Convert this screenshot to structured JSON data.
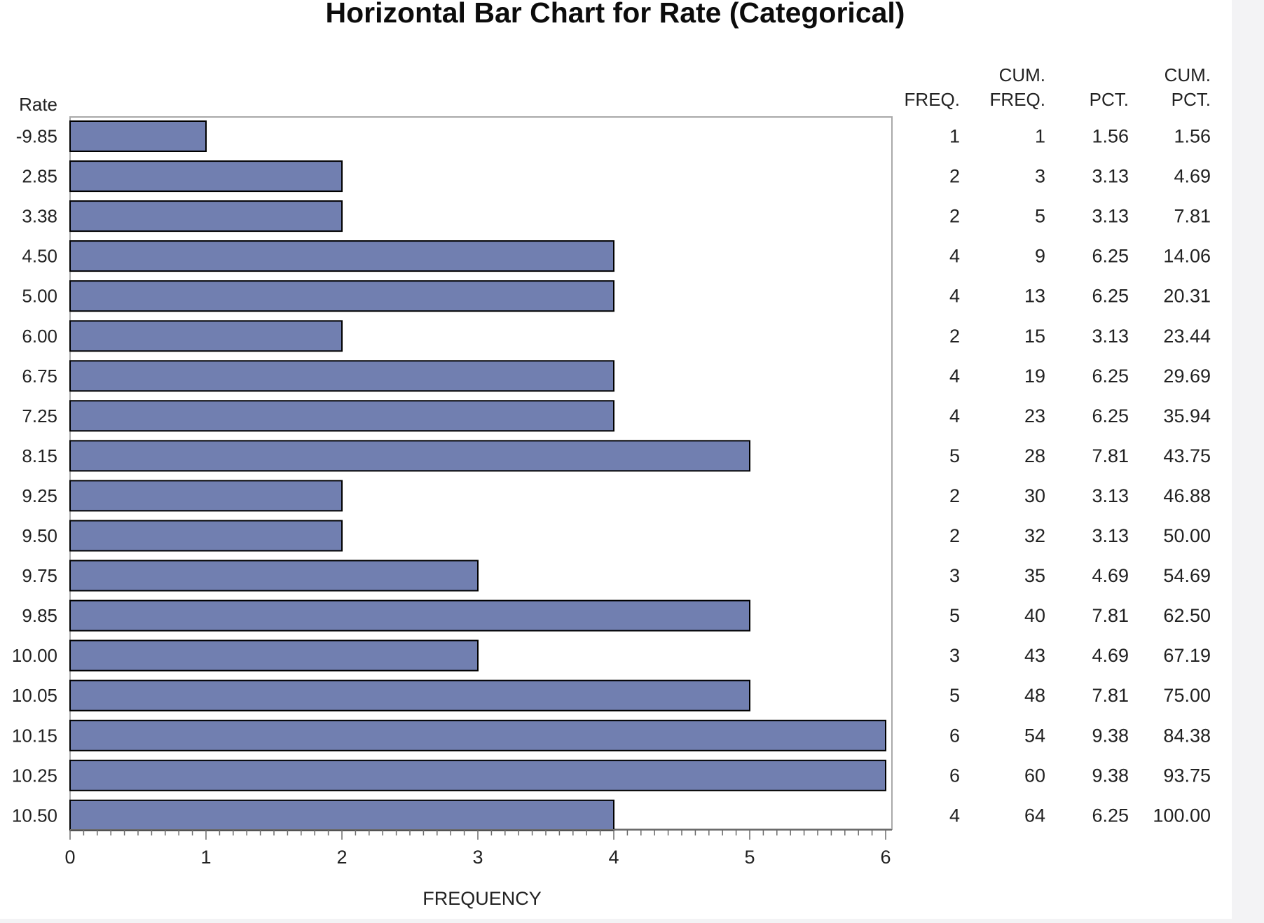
{
  "chart_data": {
    "type": "bar",
    "orientation": "horizontal",
    "title": "Horizontal Bar Chart for Rate (Categorical)",
    "ylabel": "Rate",
    "xlabel": "FREQUENCY",
    "xlim": [
      0,
      6
    ],
    "xticks": [
      "0",
      "1",
      "2",
      "3",
      "4",
      "5",
      "6"
    ],
    "categories": [
      "-9.85",
      "2.85",
      "3.38",
      "4.50",
      "5.00",
      "6.00",
      "6.75",
      "7.25",
      "8.15",
      "9.25",
      "9.50",
      "9.75",
      "9.85",
      "10.00",
      "10.05",
      "10.15",
      "10.25",
      "10.50"
    ],
    "values": [
      1,
      2,
      2,
      4,
      4,
      2,
      4,
      4,
      5,
      2,
      2,
      3,
      5,
      3,
      5,
      6,
      6,
      4
    ],
    "bar_color": "#717fb0",
    "bar_outline_color": "#000000",
    "grid": false,
    "table": {
      "headers": [
        {
          "top": "",
          "bottom": "FREQ."
        },
        {
          "top": "CUM.",
          "bottom": "FREQ."
        },
        {
          "top": "",
          "bottom": "PCT."
        },
        {
          "top": "CUM.",
          "bottom": "PCT."
        }
      ],
      "rows": [
        [
          "1",
          "1",
          "1.56",
          "1.56"
        ],
        [
          "2",
          "3",
          "3.13",
          "4.69"
        ],
        [
          "2",
          "5",
          "3.13",
          "7.81"
        ],
        [
          "4",
          "9",
          "6.25",
          "14.06"
        ],
        [
          "4",
          "13",
          "6.25",
          "20.31"
        ],
        [
          "2",
          "15",
          "3.13",
          "23.44"
        ],
        [
          "4",
          "19",
          "6.25",
          "29.69"
        ],
        [
          "4",
          "23",
          "6.25",
          "35.94"
        ],
        [
          "5",
          "28",
          "7.81",
          "43.75"
        ],
        [
          "2",
          "30",
          "3.13",
          "46.88"
        ],
        [
          "2",
          "32",
          "3.13",
          "50.00"
        ],
        [
          "3",
          "35",
          "4.69",
          "54.69"
        ],
        [
          "5",
          "40",
          "7.81",
          "62.50"
        ],
        [
          "3",
          "43",
          "4.69",
          "67.19"
        ],
        [
          "5",
          "48",
          "7.81",
          "75.00"
        ],
        [
          "6",
          "54",
          "9.38",
          "84.38"
        ],
        [
          "6",
          "60",
          "9.38",
          "93.75"
        ],
        [
          "4",
          "64",
          "6.25",
          "100.00"
        ]
      ]
    }
  }
}
